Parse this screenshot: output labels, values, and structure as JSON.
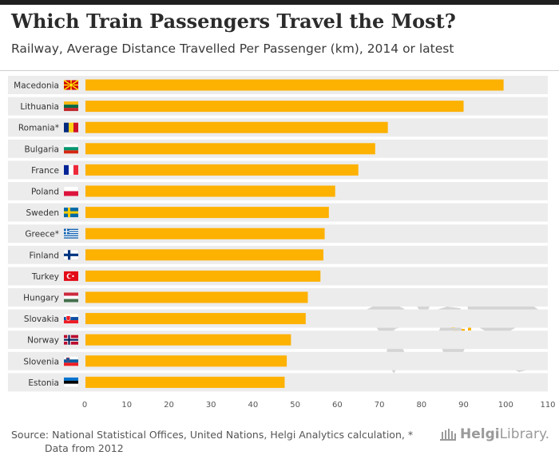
{
  "header": {
    "title": "Which Train Passengers Travel the Most?",
    "subtitle": "Railway, Average Distance Travelled Per Passenger (km), 2014 or latest"
  },
  "footer": {
    "source_line1": "Source: National Statistical Offices, United Nations, Helgi Analytics calculation, *",
    "source_line2": "Data from 2012",
    "logo_bold": "Helgi",
    "logo_rest": "Library."
  },
  "colors": {
    "bar": "#fdb100",
    "row_band": "#ececec",
    "axis_text": "#555555",
    "map_land": "#d4d4d4",
    "map_highlight": "#fdb100"
  },
  "chart_data": {
    "type": "bar",
    "orientation": "horizontal",
    "title": "Which Train Passengers Travel the Most?",
    "subtitle": "Railway, Average Distance Travelled Per Passenger (km), 2014 or latest",
    "xlabel": "",
    "ylabel": "",
    "xlim": [
      0,
      110
    ],
    "xticks": [
      0,
      10,
      20,
      30,
      40,
      50,
      60,
      70,
      80,
      90,
      100,
      110
    ],
    "categories": [
      "Macedonia",
      "Lithuania",
      "Romania*",
      "Bulgaria",
      "France",
      "Poland",
      "Sweden",
      "Greece*",
      "Finland",
      "Turkey",
      "Hungary",
      "Slovakia",
      "Norway",
      "Slovenia",
      "Estonia"
    ],
    "flags": [
      "macedonia-flag",
      "lithuania-flag",
      "romania-flag",
      "bulgaria-flag",
      "france-flag",
      "poland-flag",
      "sweden-flag",
      "greece-flag",
      "finland-flag",
      "turkey-flag",
      "hungary-flag",
      "slovakia-flag",
      "norway-flag",
      "slovenia-flag",
      "estonia-flag"
    ],
    "values": [
      99.5,
      90.0,
      72.0,
      69.0,
      65.0,
      59.5,
      58.0,
      57.0,
      56.7,
      56.0,
      53.0,
      52.5,
      49.0,
      48.0,
      47.5
    ]
  }
}
